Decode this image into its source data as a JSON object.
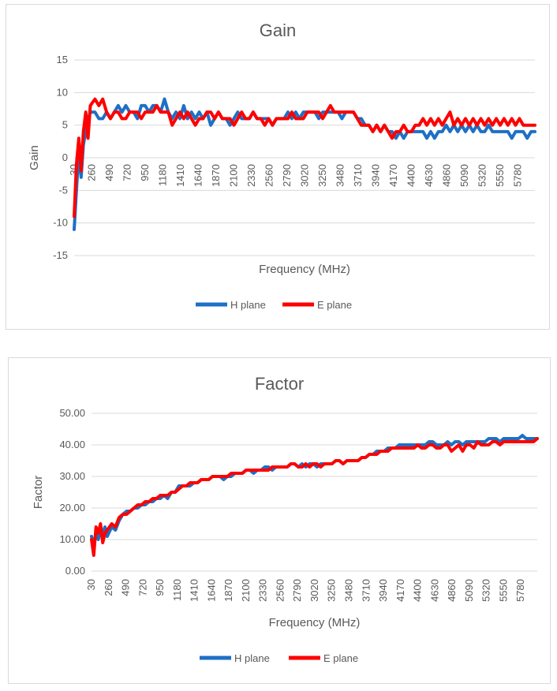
{
  "chart_data": [
    {
      "type": "line",
      "title": "Gain",
      "xlabel": "Frequency (MHz)",
      "ylabel": "Gain",
      "ylim": [
        -15,
        15
      ],
      "y_ticks": [
        "15",
        "10",
        "5",
        "0",
        "-5",
        "-10",
        "-15"
      ],
      "x_tick_labels": [
        "30",
        "260",
        "490",
        "720",
        "950",
        "1180",
        "1410",
        "1640",
        "1870",
        "2100",
        "2330",
        "2560",
        "2790",
        "3020",
        "3250",
        "3480",
        "3710",
        "3940",
        "4170",
        "4400",
        "4630",
        "4860",
        "5090",
        "5320",
        "5550",
        "5780"
      ],
      "xlim": [
        30,
        6000
      ],
      "grid": true,
      "legend_position": "bottom",
      "series": [
        {
          "name": "H plane",
          "color": "#1f6fc5",
          "x": [
            30,
            60,
            90,
            120,
            150,
            180,
            210,
            240,
            300,
            350,
            400,
            450,
            500,
            550,
            600,
            650,
            700,
            750,
            800,
            850,
            900,
            950,
            1000,
            1050,
            1100,
            1150,
            1200,
            1250,
            1300,
            1350,
            1400,
            1450,
            1500,
            1550,
            1600,
            1650,
            1700,
            1750,
            1800,
            1850,
            1900,
            1950,
            2000,
            2050,
            2100,
            2150,
            2200,
            2250,
            2300,
            2350,
            2400,
            2450,
            2500,
            2550,
            2600,
            2650,
            2700,
            2750,
            2800,
            2850,
            2900,
            2950,
            3000,
            3050,
            3100,
            3150,
            3200,
            3250,
            3300,
            3350,
            3400,
            3450,
            3500,
            3550,
            3600,
            3650,
            3700,
            3750,
            3800,
            3850,
            3900,
            3950,
            4000,
            4050,
            4100,
            4150,
            4200,
            4250,
            4300,
            4350,
            4400,
            4450,
            4500,
            4550,
            4600,
            4650,
            4700,
            4750,
            4800,
            4850,
            4900,
            4950,
            5000,
            5050,
            5100,
            5150,
            5200,
            5250,
            5300,
            5350,
            5400,
            5450,
            5500,
            5550,
            5600,
            5650,
            5700,
            5750,
            5800,
            5850,
            5900,
            5950,
            6000
          ],
          "y": [
            -11,
            -5,
            1,
            -3,
            2,
            4,
            6,
            7,
            7,
            6,
            6,
            7,
            6,
            7,
            8,
            7,
            8,
            7,
            7,
            6,
            8,
            8,
            7,
            8,
            8,
            7,
            9,
            7,
            6,
            7,
            6,
            8,
            6,
            7,
            6,
            7,
            6,
            7,
            5,
            6,
            7,
            6,
            6,
            5,
            6,
            7,
            6,
            6,
            6,
            7,
            6,
            6,
            6,
            6,
            5,
            6,
            6,
            6,
            7,
            6,
            7,
            6,
            7,
            7,
            7,
            7,
            6,
            7,
            7,
            7,
            7,
            7,
            6,
            7,
            7,
            7,
            6,
            6,
            5,
            5,
            4,
            5,
            4,
            5,
            4,
            4,
            3,
            4,
            3,
            4,
            4,
            4,
            4,
            4,
            3,
            4,
            3,
            4,
            4,
            5,
            4,
            5,
            4,
            5,
            4,
            5,
            4,
            5,
            4,
            4,
            5,
            4,
            4,
            4,
            4,
            4,
            3,
            4,
            4,
            4,
            3,
            4,
            4
          ]
        },
        {
          "name": "E plane",
          "color": "#ff0000",
          "x": [
            30,
            60,
            90,
            120,
            150,
            180,
            210,
            240,
            300,
            350,
            400,
            450,
            500,
            550,
            600,
            650,
            700,
            750,
            800,
            850,
            900,
            950,
            1000,
            1050,
            1100,
            1150,
            1200,
            1250,
            1300,
            1350,
            1400,
            1450,
            1500,
            1550,
            1600,
            1650,
            1700,
            1750,
            1800,
            1850,
            1900,
            1950,
            2000,
            2050,
            2100,
            2150,
            2200,
            2250,
            2300,
            2350,
            2400,
            2450,
            2500,
            2550,
            2600,
            2650,
            2700,
            2750,
            2800,
            2850,
            2900,
            2950,
            3000,
            3050,
            3100,
            3150,
            3200,
            3250,
            3300,
            3350,
            3400,
            3450,
            3500,
            3550,
            3600,
            3650,
            3700,
            3750,
            3800,
            3850,
            3900,
            3950,
            4000,
            4050,
            4100,
            4150,
            4200,
            4250,
            4300,
            4350,
            4400,
            4450,
            4500,
            4550,
            4600,
            4650,
            4700,
            4750,
            4800,
            4850,
            4900,
            4950,
            5000,
            5050,
            5100,
            5150,
            5200,
            5250,
            5300,
            5350,
            5400,
            5450,
            5500,
            5550,
            5600,
            5650,
            5700,
            5750,
            5800,
            5850,
            5900,
            5950,
            6000
          ],
          "y": [
            -9,
            -1,
            3,
            -2,
            4,
            7,
            3,
            8,
            9,
            8,
            9,
            7,
            6,
            7,
            7,
            6,
            6,
            7,
            7,
            7,
            6,
            7,
            7,
            7,
            8,
            7,
            7,
            7,
            5,
            6,
            7,
            6,
            7,
            6,
            5,
            6,
            6,
            7,
            7,
            6,
            7,
            6,
            6,
            6,
            5,
            6,
            7,
            6,
            6,
            7,
            6,
            6,
            5,
            6,
            5,
            6,
            6,
            6,
            6,
            7,
            6,
            6,
            6,
            7,
            7,
            7,
            7,
            6,
            7,
            8,
            7,
            7,
            7,
            7,
            7,
            7,
            6,
            5,
            5,
            5,
            4,
            5,
            4,
            5,
            4,
            3,
            4,
            4,
            5,
            4,
            4,
            5,
            5,
            6,
            5,
            6,
            5,
            6,
            5,
            6,
            7,
            5,
            6,
            5,
            6,
            5,
            6,
            5,
            6,
            5,
            6,
            5,
            6,
            5,
            6,
            5,
            6,
            5,
            6,
            5,
            5,
            5,
            5
          ]
        }
      ]
    },
    {
      "type": "line",
      "title": "Factor",
      "xlabel": "Frequency (MHz)",
      "ylabel": "Factor",
      "ylim": [
        0,
        50
      ],
      "y_ticks": [
        "50.00",
        "40.00",
        "30.00",
        "20.00",
        "10.00",
        "0.00"
      ],
      "x_tick_labels": [
        "30",
        "260",
        "490",
        "720",
        "950",
        "1180",
        "1410",
        "1640",
        "1870",
        "2100",
        "2330",
        "2560",
        "2790",
        "3020",
        "3250",
        "3480",
        "3710",
        "3940",
        "4170",
        "4400",
        "4630",
        "4860",
        "5090",
        "5320",
        "5550",
        "5780"
      ],
      "xlim": [
        30,
        6000
      ],
      "grid": true,
      "legend_position": "bottom",
      "series": [
        {
          "name": "H plane",
          "color": "#1f6fc5",
          "x": [
            30,
            60,
            90,
            120,
            150,
            180,
            210,
            240,
            300,
            350,
            400,
            450,
            500,
            550,
            600,
            650,
            700,
            750,
            800,
            850,
            900,
            950,
            1000,
            1050,
            1100,
            1150,
            1200,
            1250,
            1300,
            1350,
            1400,
            1450,
            1500,
            1550,
            1600,
            1650,
            1700,
            1750,
            1800,
            1850,
            1900,
            1950,
            2000,
            2050,
            2100,
            2150,
            2200,
            2250,
            2300,
            2350,
            2400,
            2450,
            2500,
            2550,
            2600,
            2650,
            2700,
            2750,
            2800,
            2850,
            2900,
            2950,
            3000,
            3050,
            3100,
            3150,
            3200,
            3250,
            3300,
            3350,
            3400,
            3450,
            3500,
            3550,
            3600,
            3650,
            3700,
            3750,
            3800,
            3850,
            3900,
            3950,
            4000,
            4050,
            4100,
            4150,
            4200,
            4250,
            4300,
            4350,
            4400,
            4450,
            4500,
            4550,
            4600,
            4650,
            4700,
            4750,
            4800,
            4850,
            4900,
            4950,
            5000,
            5050,
            5100,
            5150,
            5200,
            5250,
            5300,
            5350,
            5400,
            5450,
            5500,
            5550,
            5600,
            5650,
            5700,
            5750,
            5800,
            5850,
            5900,
            5950,
            6000
          ],
          "y": [
            11,
            8,
            12,
            10,
            13,
            12,
            14,
            11,
            14,
            13,
            16,
            18,
            19,
            19,
            20,
            20,
            21,
            21,
            22,
            22,
            23,
            23,
            24,
            23,
            25,
            25,
            27,
            27,
            27,
            27,
            28,
            28,
            29,
            29,
            29,
            30,
            30,
            30,
            29,
            30,
            30,
            31,
            31,
            31,
            32,
            32,
            31,
            32,
            32,
            33,
            33,
            32,
            33,
            33,
            33,
            33,
            34,
            34,
            33,
            34,
            33,
            34,
            34,
            33,
            34,
            34,
            34,
            34,
            35,
            35,
            34,
            35,
            35,
            35,
            35,
            36,
            36,
            37,
            37,
            38,
            38,
            38,
            39,
            39,
            39,
            40,
            40,
            40,
            40,
            40,
            40,
            40,
            40,
            41,
            41,
            40,
            40,
            40,
            41,
            40,
            41,
            41,
            40,
            41,
            41,
            41,
            41,
            41,
            41,
            42,
            42,
            42,
            41,
            42,
            42,
            42,
            42,
            42,
            43,
            42,
            42,
            42,
            42
          ]
        },
        {
          "name": "E plane",
          "color": "#ff0000",
          "x": [
            30,
            60,
            90,
            120,
            150,
            180,
            210,
            240,
            300,
            350,
            400,
            450,
            500,
            550,
            600,
            650,
            700,
            750,
            800,
            850,
            900,
            950,
            1000,
            1050,
            1100,
            1150,
            1200,
            1250,
            1300,
            1350,
            1400,
            1450,
            1500,
            1550,
            1600,
            1650,
            1700,
            1750,
            1800,
            1850,
            1900,
            1950,
            2000,
            2050,
            2100,
            2150,
            2200,
            2250,
            2300,
            2350,
            2400,
            2450,
            2500,
            2550,
            2600,
            2650,
            2700,
            2750,
            2800,
            2850,
            2900,
            2950,
            3000,
            3050,
            3100,
            3150,
            3200,
            3250,
            3300,
            3350,
            3400,
            3450,
            3500,
            3550,
            3600,
            3650,
            3700,
            3750,
            3800,
            3850,
            3900,
            3950,
            4000,
            4050,
            4100,
            4150,
            4200,
            4250,
            4300,
            4350,
            4400,
            4450,
            4500,
            4550,
            4600,
            4650,
            4700,
            4750,
            4800,
            4850,
            4900,
            4950,
            5000,
            5050,
            5100,
            5150,
            5200,
            5250,
            5300,
            5350,
            5400,
            5450,
            5500,
            5550,
            5600,
            5650,
            5700,
            5750,
            5800,
            5850,
            5900,
            5950,
            6000
          ],
          "y": [
            10,
            5,
            14,
            12,
            15,
            9,
            12,
            13,
            15,
            14,
            17,
            18,
            18,
            19,
            20,
            21,
            21,
            22,
            22,
            23,
            23,
            24,
            24,
            24,
            25,
            25,
            26,
            27,
            27,
            28,
            28,
            28,
            29,
            29,
            29,
            30,
            30,
            30,
            30,
            30,
            31,
            31,
            31,
            31,
            32,
            32,
            32,
            32,
            32,
            32,
            32,
            33,
            33,
            33,
            33,
            33,
            34,
            34,
            33,
            33,
            34,
            33,
            34,
            34,
            33,
            34,
            34,
            34,
            35,
            35,
            34,
            35,
            35,
            35,
            35,
            36,
            36,
            37,
            37,
            37,
            38,
            38,
            38,
            39,
            39,
            39,
            39,
            39,
            39,
            39,
            40,
            39,
            39,
            40,
            40,
            39,
            39,
            40,
            40,
            38,
            39,
            40,
            38,
            40,
            40,
            39,
            41,
            40,
            40,
            40,
            41,
            41,
            40,
            41,
            41,
            41,
            41,
            41,
            41,
            41,
            41,
            41,
            42
          ]
        }
      ]
    }
  ]
}
